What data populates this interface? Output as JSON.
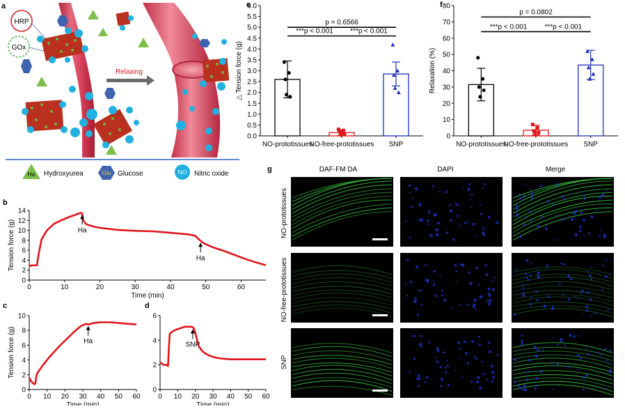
{
  "panels": {
    "a": {
      "letter": "a",
      "labels": {
        "hrp": "HRP",
        "gox": "GOx",
        "relaxing": "Relaxing"
      },
      "legend": [
        {
          "symbol": "Ha",
          "label": "Hydroxyurea",
          "shape": "triangle",
          "color": "#7dbf4a"
        },
        {
          "symbol": "Glu",
          "label": "Glucose",
          "shape": "hexagon",
          "color": "#3e64b0"
        },
        {
          "symbol": "NO",
          "label": "Nitric oxide",
          "shape": "circle",
          "color": "#22b0e0"
        }
      ]
    },
    "g": {
      "letter": "g",
      "columns": [
        "DAF-FM DA",
        "DAPI",
        "Merge"
      ],
      "rows": [
        "NO-prototissues",
        "NO-free-prototissues",
        "SNP"
      ]
    }
  },
  "colors": {
    "trace": "#e0141c",
    "bar_red": "#e0141c",
    "bar_blue": "#1c2fb3",
    "bar_black": "#000000",
    "nuclei": "#2436d6",
    "fiber": "#35b93a"
  },
  "chart_data": [
    {
      "id": "b",
      "letter": "b",
      "type": "line",
      "xlabel": "Time (min)",
      "ylabel": "Tension force (g)",
      "xlim": [
        0,
        67
      ],
      "ylim": [
        0,
        14
      ],
      "xticks": [
        0,
        10,
        20,
        30,
        40,
        50,
        60
      ],
      "yticks": [
        0,
        2,
        4,
        6,
        8,
        10,
        12,
        14
      ],
      "series": [
        {
          "x": [
            0,
            2.2,
            2.6,
            3.5,
            5,
            7,
            9,
            11,
            13,
            14.5,
            15,
            15.3,
            16,
            17,
            18,
            20,
            25,
            30,
            35,
            40,
            45,
            47,
            48,
            49,
            50,
            52,
            55,
            58,
            61,
            64,
            67
          ],
          "y": [
            2.9,
            3.0,
            5.0,
            8.2,
            10.0,
            11.3,
            12.0,
            12.6,
            13.1,
            13.5,
            13.4,
            12.0,
            11.3,
            11.0,
            10.8,
            10.5,
            10.1,
            9.9,
            9.8,
            9.5,
            9.2,
            8.9,
            8.2,
            7.6,
            7.2,
            6.6,
            5.9,
            5.1,
            4.3,
            3.6,
            3.0
          ]
        }
      ],
      "annotations": [
        {
          "text": "Ha",
          "x": 15,
          "y": 13.4
        },
        {
          "text": "Ha",
          "x": 48.5,
          "y": 7.8
        }
      ]
    },
    {
      "id": "c",
      "letter": "c",
      "type": "line",
      "xlabel": "Time (min)",
      "ylabel": "Tension force (g)",
      "xlim": [
        0,
        60
      ],
      "ylim": [
        0,
        10
      ],
      "xticks": [
        0,
        10,
        20,
        30,
        40,
        50,
        60
      ],
      "yticks": [
        0,
        2,
        4,
        6,
        8,
        10
      ],
      "series": [
        {
          "x": [
            0,
            1,
            2,
            3,
            3.5,
            4,
            5,
            8,
            11,
            14,
            17,
            20,
            23,
            26,
            29,
            32,
            33,
            36,
            40,
            45,
            50,
            55,
            60
          ],
          "y": [
            1.6,
            1.1,
            0.9,
            0.7,
            0.9,
            1.9,
            2.4,
            3.4,
            4.3,
            5.1,
            5.9,
            6.6,
            7.3,
            8.0,
            8.6,
            8.9,
            8.8,
            9.0,
            9.1,
            9.1,
            9.0,
            8.9,
            8.8
          ]
        }
      ],
      "annotations": [
        {
          "text": "Ha",
          "x": 33,
          "y": 8.8
        }
      ]
    },
    {
      "id": "d",
      "letter": "d",
      "type": "line",
      "xlabel": "Time (min)",
      "ylabel": "",
      "xlim": [
        0,
        60
      ],
      "ylim": [
        0,
        6
      ],
      "xticks": [
        0,
        10,
        20,
        30,
        40,
        50,
        60
      ],
      "yticks": [
        0,
        2,
        4,
        6
      ],
      "series": [
        {
          "x": [
            0,
            2,
            4,
            4.5,
            5,
            5.5,
            6,
            8,
            10,
            12,
            14,
            16,
            18,
            19,
            20,
            21,
            22,
            24,
            26,
            28,
            30,
            33,
            36,
            40,
            45,
            50,
            55,
            60
          ],
          "y": [
            2.2,
            2.0,
            2.0,
            1.9,
            3.5,
            4.5,
            4.6,
            4.8,
            4.9,
            5.0,
            5.1,
            5.1,
            5.1,
            5.0,
            4.6,
            4.0,
            3.5,
            3.1,
            2.9,
            2.75,
            2.65,
            2.55,
            2.5,
            2.45,
            2.45,
            2.45,
            2.45,
            2.45
          ]
        }
      ],
      "annotations": [
        {
          "text": "SNP",
          "x": 18.5,
          "y": 5.0
        }
      ]
    },
    {
      "id": "e",
      "letter": "e",
      "type": "bar",
      "ylabel": "△ Tension force (g)",
      "ylim": [
        0,
        6.0
      ],
      "yticks": [
        0,
        0.5,
        1.0,
        1.5,
        2.0,
        2.5,
        3.0,
        3.5,
        4.0,
        4.5,
        5.0,
        5.5,
        6.0
      ],
      "categories": [
        "NO-prototissues",
        "NO-free-prototissues",
        "SNP"
      ],
      "values": [
        2.6,
        0.15,
        2.85
      ],
      "errors": [
        0.85,
        0.12,
        0.55
      ],
      "points": [
        [
          3.4,
          2.9,
          2.6,
          1.8,
          1.9
        ],
        [
          0.3,
          0.25,
          0.2,
          0.1,
          0.05
        ],
        [
          4.2,
          3.0,
          2.8,
          2.0,
          2.2
        ]
      ],
      "comparisons": [
        {
          "text": "p = 0.6566",
          "from": 0,
          "to": 2,
          "y": 5.0
        },
        {
          "text": "***p < 0.001",
          "from": 0,
          "to": 1,
          "y": 4.6
        },
        {
          "text": "***p < 0.001",
          "from": 1,
          "to": 2,
          "y": 4.6
        }
      ]
    },
    {
      "id": "f",
      "letter": "f",
      "type": "bar",
      "ylabel": "Relaxation (%)",
      "ylim": [
        0,
        80
      ],
      "yticks": [
        0,
        10,
        20,
        30,
        40,
        50,
        60,
        70,
        80
      ],
      "categories": [
        "NO-prototissues",
        "NO-free-prototissues",
        "SNP"
      ],
      "values": [
        31.5,
        3.5,
        43.5
      ],
      "errors": [
        10,
        3,
        9
      ],
      "points": [
        [
          48,
          35,
          30,
          28,
          24
        ],
        [
          7,
          5,
          3,
          2,
          1
        ],
        [
          52,
          47,
          42,
          38,
          35
        ]
      ],
      "comparisons": [
        {
          "text": "p = 0.0802",
          "from": 0,
          "to": 2,
          "y": 73
        },
        {
          "text": "***p < 0.001",
          "from": 0,
          "to": 1,
          "y": 64
        },
        {
          "text": "***p < 0.001",
          "from": 1,
          "to": 2,
          "y": 64
        }
      ]
    }
  ]
}
